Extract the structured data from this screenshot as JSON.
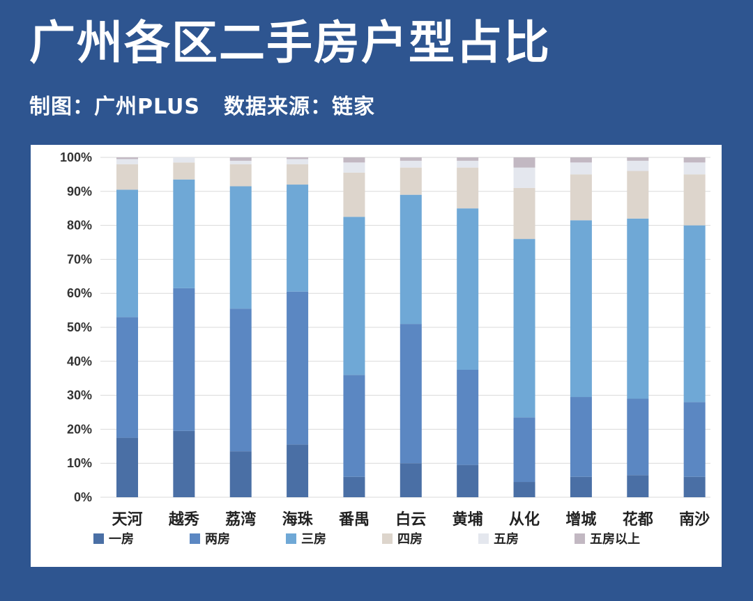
{
  "header": {
    "title": "广州各区二手房户型占比",
    "credit": "制图：广州PLUS",
    "source": "数据来源：链家"
  },
  "chart_data": {
    "type": "bar",
    "stacked": "percent",
    "categories": [
      "天河",
      "越秀",
      "荔湾",
      "海珠",
      "番禺",
      "白云",
      "黄埔",
      "从化",
      "增城",
      "花都",
      "南沙"
    ],
    "y_ticks": [
      "0%",
      "10%",
      "20%",
      "30%",
      "40%",
      "50%",
      "60%",
      "70%",
      "80%",
      "90%",
      "100%"
    ],
    "ylim": [
      0,
      100
    ],
    "grid": true,
    "legend_position": "bottom",
    "series": [
      {
        "name": "一房",
        "color": "#4a6fa5",
        "values": [
          17.5,
          19.5,
          13.5,
          15.5,
          6,
          10,
          9.5,
          4.5,
          6,
          6.5,
          6
        ]
      },
      {
        "name": "两房",
        "color": "#5b87c2",
        "values": [
          35.5,
          42,
          42,
          45,
          30,
          41,
          28,
          19,
          23.5,
          22.5,
          22
        ]
      },
      {
        "name": "三房",
        "color": "#6fa8d6",
        "values": [
          37.5,
          32,
          36,
          31.5,
          46.5,
          38,
          47.5,
          52.5,
          52,
          53,
          52
        ]
      },
      {
        "name": "四房",
        "color": "#ddd5cc",
        "values": [
          7.5,
          5,
          6.5,
          6,
          13,
          8,
          12,
          15,
          13.5,
          14,
          15
        ]
      },
      {
        "name": "五房",
        "color": "#e4e7ee",
        "values": [
          1.5,
          1.5,
          1,
          1.5,
          3,
          2,
          2,
          6,
          3.5,
          3,
          3.5
        ]
      },
      {
        "name": "五房以上",
        "color": "#c2b8c2",
        "values": [
          0.5,
          0,
          1,
          0.5,
          1.5,
          1,
          1,
          3,
          1.5,
          1,
          1.5
        ]
      }
    ]
  }
}
